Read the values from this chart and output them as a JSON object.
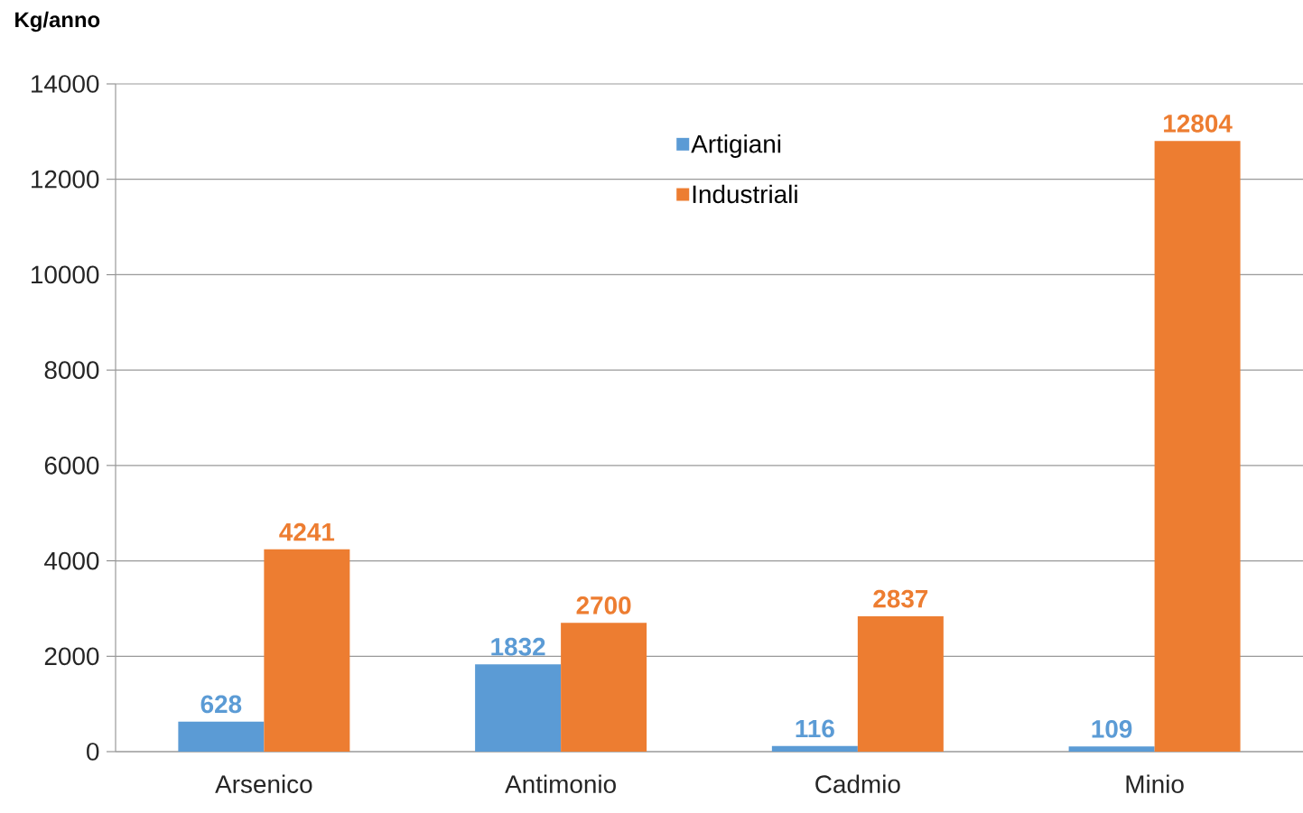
{
  "chart_data": {
    "type": "bar",
    "ylabel": "Kg/anno",
    "categories": [
      "Arsenico",
      "Antimonio",
      "Cadmio",
      "Minio"
    ],
    "series": [
      {
        "name": "Artigiani",
        "color": "#5b9bd5",
        "values": [
          628,
          1832,
          116,
          109
        ]
      },
      {
        "name": "Industriali",
        "color": "#ed7d31",
        "values": [
          4241,
          2700,
          2837,
          12804
        ]
      }
    ],
    "ylim": [
      0,
      14000
    ],
    "yticks": [
      0,
      2000,
      4000,
      6000,
      8000,
      10000,
      12000,
      14000
    ],
    "grid": "y",
    "legend": "top",
    "data_labels": true
  }
}
